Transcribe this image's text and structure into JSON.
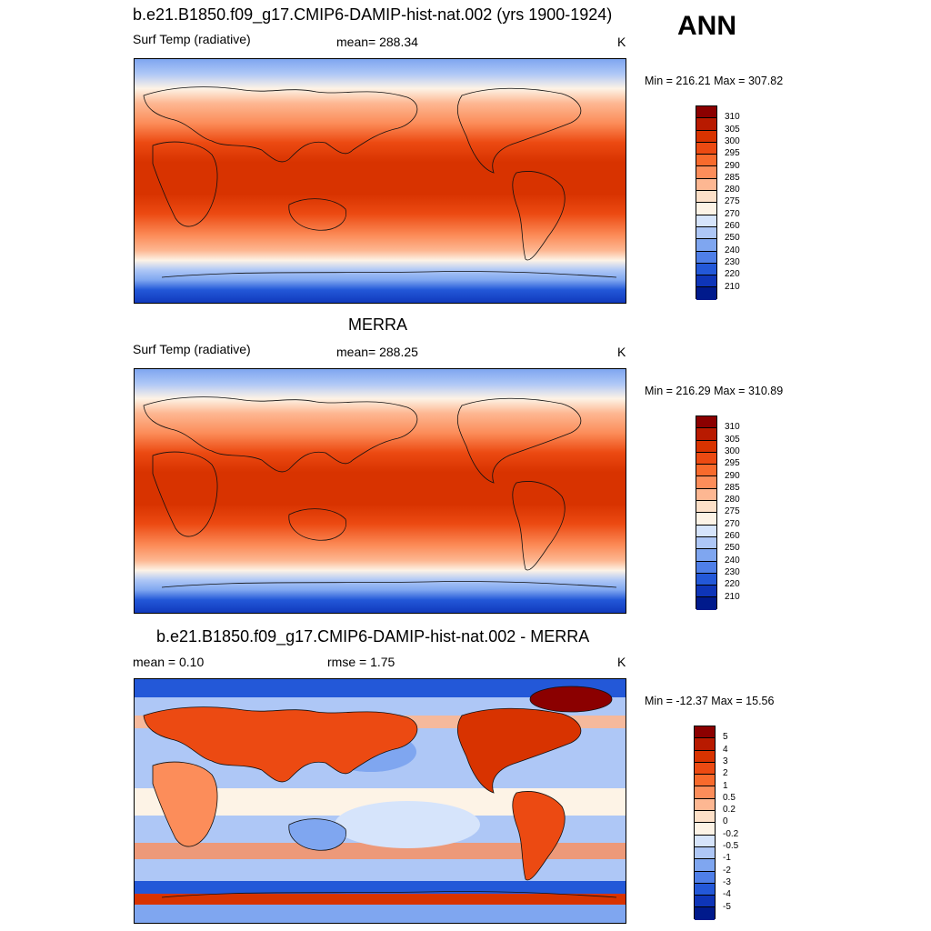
{
  "figure_label": "ANN",
  "panels": [
    {
      "title": "b.e21.B1850.f09_g17.CMIP6-DAMIP-hist-nat.002 (yrs 1900-1924)",
      "left_label": "Surf Temp (radiative)",
      "center_label": "mean= 288.34",
      "units": "K",
      "minmax": "Min = 216.21 Max = 307.82"
    },
    {
      "title": "MERRA",
      "left_label": "Surf Temp (radiative)",
      "center_label": "mean= 288.25",
      "units": "K",
      "minmax": "Min = 216.29 Max = 310.89"
    },
    {
      "title": "b.e21.B1850.f09_g17.CMIP6-DAMIP-hist-nat.002 - MERRA",
      "left_label": "mean =   0.10",
      "center_label": "rmse =   1.75",
      "units": "K",
      "minmax": "Min = -12.37 Max =  15.56"
    }
  ],
  "colorbars": {
    "temperature": {
      "labels": [
        "310",
        "305",
        "300",
        "295",
        "290",
        "285",
        "280",
        "275",
        "270",
        "260",
        "250",
        "240",
        "230",
        "220",
        "210"
      ],
      "colors": [
        "#8b0000",
        "#b81a00",
        "#d83300",
        "#ec4a12",
        "#f86a2c",
        "#fc8d5a",
        "#fdb792",
        "#fde0c8",
        "#fdf3e6",
        "#d6e4fb",
        "#aec7f6",
        "#7fa6f0",
        "#4f7fe8",
        "#2358d8",
        "#0e35b8",
        "#001a8c"
      ]
    },
    "difference": {
      "labels": [
        "5",
        "4",
        "3",
        "2",
        "1",
        "0.5",
        "0.2",
        "0",
        "-0.2",
        "-0.5",
        "-1",
        "-2",
        "-3",
        "-4",
        "-5"
      ],
      "colors": [
        "#8b0000",
        "#b81a00",
        "#d83300",
        "#ec4a12",
        "#f86a2c",
        "#fc8d5a",
        "#fdb792",
        "#fde0c8",
        "#fdf3e6",
        "#d6e4fb",
        "#aec7f6",
        "#7fa6f0",
        "#4f7fe8",
        "#2358d8",
        "#0e35b8",
        "#001a8c"
      ]
    }
  },
  "chart_data": [
    {
      "type": "heatmap",
      "title": "b.e21.B1850.f09_g17.CMIP6-DAMIP-hist-nat.002 (yrs 1900-1924)",
      "variable": "Surf Temp (radiative)",
      "units": "K",
      "mean": 288.34,
      "min": 216.21,
      "max": 307.82,
      "contour_levels": [
        210,
        220,
        230,
        240,
        250,
        260,
        270,
        275,
        280,
        285,
        290,
        295,
        300,
        305,
        310
      ]
    },
    {
      "type": "heatmap",
      "title": "MERRA",
      "variable": "Surf Temp (radiative)",
      "units": "K",
      "mean": 288.25,
      "min": 216.29,
      "max": 310.89,
      "contour_levels": [
        210,
        220,
        230,
        240,
        250,
        260,
        270,
        275,
        280,
        285,
        290,
        295,
        300,
        305,
        310
      ]
    },
    {
      "type": "heatmap",
      "title": "b.e21.B1850.f09_g17.CMIP6-DAMIP-hist-nat.002 - MERRA",
      "units": "K",
      "mean": 0.1,
      "rmse": 1.75,
      "min": -12.37,
      "max": 15.56,
      "contour_levels": [
        -5,
        -4,
        -3,
        -2,
        -1,
        -0.5,
        -0.2,
        0,
        0.2,
        0.5,
        1,
        2,
        3,
        4,
        5
      ]
    }
  ]
}
